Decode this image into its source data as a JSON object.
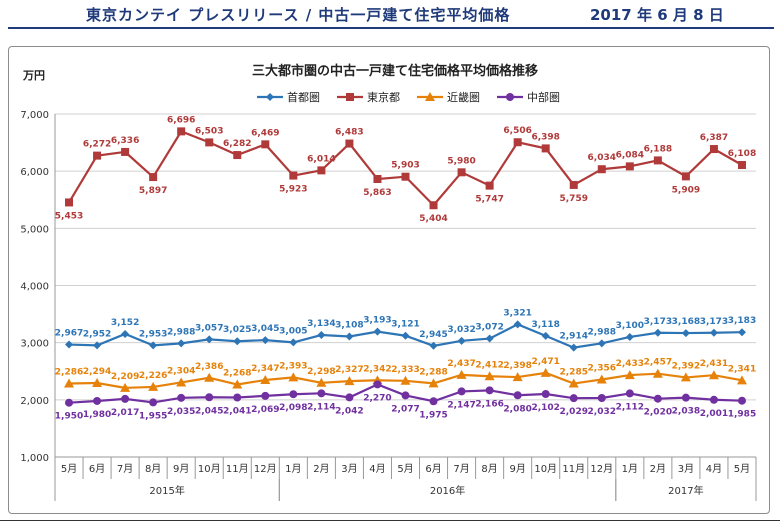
{
  "header": {
    "title": "東京カンテイ プレスリリース / 中古一戸建て住宅平均価格",
    "date": "2017 年 6 月 8 日"
  },
  "chart_data": {
    "type": "line",
    "title": "三大都市圏の中古一戸建て住宅価格平均価格推移",
    "ylabel": "万円",
    "ylim": [
      1000,
      7000
    ],
    "yticks": [
      "1,000",
      "2,000",
      "3,000",
      "4,000",
      "5,000",
      "6,000",
      "7,000"
    ],
    "categories": [
      "5月",
      "6月",
      "7月",
      "8月",
      "9月",
      "10月",
      "11月",
      "12月",
      "1月",
      "2月",
      "3月",
      "4月",
      "5月",
      "6月",
      "7月",
      "8月",
      "9月",
      "10月",
      "11月",
      "12月",
      "1月",
      "2月",
      "3月",
      "4月",
      "5月"
    ],
    "year_groups": [
      {
        "label": "2015年",
        "start": 0,
        "end": 7
      },
      {
        "label": "2016年",
        "start": 8,
        "end": 19
      },
      {
        "label": "2017年",
        "start": 20,
        "end": 24
      }
    ],
    "series": [
      {
        "name": "首都圏",
        "color": "#2e75b6",
        "marker": "diamond",
        "label_pos": "above",
        "values": [
          2967,
          2952,
          3152,
          2953,
          2988,
          3057,
          3025,
          3045,
          3005,
          3134,
          3108,
          3193,
          3121,
          2945,
          3032,
          3072,
          3321,
          3118,
          2914,
          2988,
          3100,
          3173,
          3168,
          3173,
          3183
        ]
      },
      {
        "name": "東京都",
        "color": "#b03a3a",
        "marker": "square",
        "label_pos": "mixed",
        "values": [
          5453,
          6272,
          6336,
          5897,
          6696,
          6503,
          6282,
          6469,
          5923,
          6014,
          6483,
          5863,
          5903,
          5404,
          5980,
          5747,
          6506,
          6398,
          5759,
          6034,
          6084,
          6188,
          5909,
          6387,
          6108
        ]
      },
      {
        "name": "近畿圏",
        "color": "#e6820a",
        "marker": "triangle",
        "label_pos": "above",
        "values": [
          2286,
          2294,
          2209,
          2226,
          2304,
          2386,
          2268,
          2347,
          2393,
          2298,
          2327,
          2342,
          2333,
          2288,
          2437,
          2412,
          2398,
          2471,
          2285,
          2356,
          2433,
          2457,
          2392,
          2431,
          2341
        ]
      },
      {
        "name": "中部圏",
        "color": "#7030a0",
        "marker": "circle",
        "label_pos": "below",
        "values": [
          1950,
          1980,
          2017,
          1955,
          2035,
          2045,
          2041,
          2069,
          2098,
          2114,
          2042,
          2270,
          2077,
          1975,
          2147,
          2166,
          2080,
          2102,
          2029,
          2032,
          2112,
          2020,
          2038,
          2001,
          1985
        ]
      }
    ],
    "tokyo_label_dir": [
      "below",
      "above",
      "above",
      "below",
      "above",
      "above",
      "above",
      "above",
      "below",
      "above",
      "above",
      "below",
      "above",
      "below",
      "above",
      "below",
      "above",
      "above",
      "below",
      "above",
      "above",
      "above",
      "below",
      "above",
      "above"
    ]
  }
}
